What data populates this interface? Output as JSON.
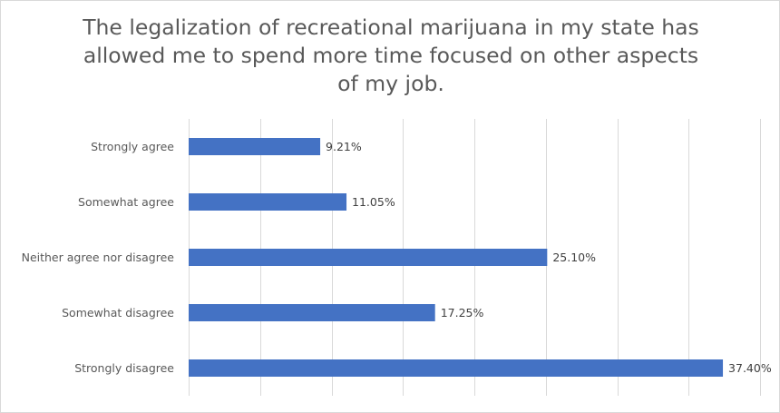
{
  "chart_data": {
    "type": "bar",
    "orientation": "horizontal",
    "title": "The legalization of recreational marijuana in my state has allowed me to spend more time focused on other aspects of my job.",
    "categories": [
      "Strongly agree",
      "Somewhat agree",
      "Neither agree nor disagree",
      "Somewhat disagree",
      "Strongly disagree"
    ],
    "values": [
      9.21,
      11.05,
      25.1,
      17.25,
      37.4
    ],
    "data_labels": [
      "9.21%",
      "11.05%",
      "25.10%",
      "17.25%",
      "37.40%"
    ],
    "xlim": [
      0,
      40
    ],
    "x_unit": "%",
    "grid": true,
    "legend": "none",
    "bar_color": "#4472c4",
    "grid_color": "#d9d9d9"
  }
}
